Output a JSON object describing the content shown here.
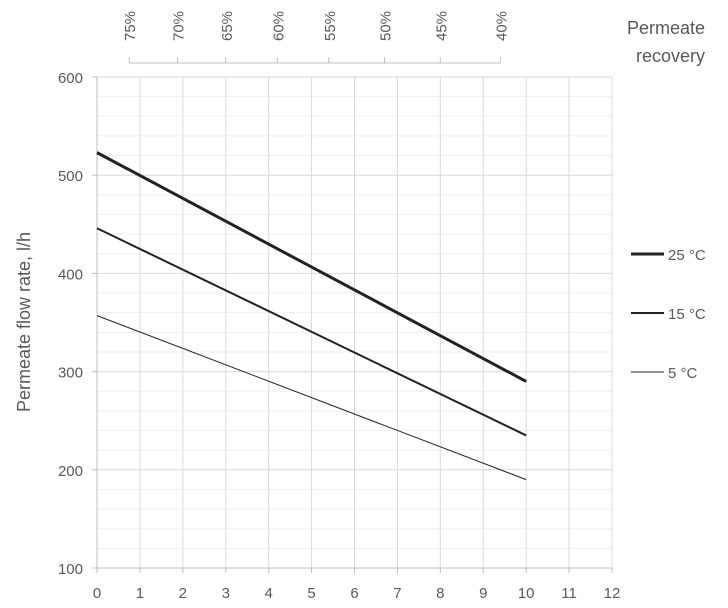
{
  "chart_data": {
    "type": "line",
    "ylabel": "Permeate flow rate, l/h",
    "xlabel": "",
    "xlim": [
      0,
      12
    ],
    "ylim": [
      100,
      600
    ],
    "x_ticks": [
      "0",
      "1",
      "2",
      "3",
      "4",
      "5",
      "6",
      "7",
      "8",
      "9",
      "10",
      "11",
      "12"
    ],
    "y_ticks": [
      "100",
      "200",
      "300",
      "400",
      "500",
      "600"
    ],
    "grid": true,
    "minor_grid": true,
    "legend_position": "right",
    "secondary_axis": {
      "title": [
        "Permeate",
        "recovery"
      ],
      "position": "top",
      "labels": [
        "75%",
        "70%",
        "65%",
        "60%",
        "55%",
        "50%",
        "45%",
        "40%"
      ],
      "positions": [
        0.75,
        1.88,
        3.0,
        4.2,
        5.4,
        6.7,
        8.0,
        9.4
      ]
    },
    "series": [
      {
        "name": "25 °C",
        "color": "#222222",
        "stroke": 3,
        "x": [
          0,
          10
        ],
        "y": [
          523,
          290
        ]
      },
      {
        "name": "15 °C",
        "color": "#222222",
        "stroke": 2,
        "x": [
          0,
          10
        ],
        "y": [
          446,
          235
        ]
      },
      {
        "name": "5 °C",
        "color": "#222222",
        "stroke": 1,
        "x": [
          0,
          10
        ],
        "y": [
          357,
          190
        ]
      }
    ]
  }
}
